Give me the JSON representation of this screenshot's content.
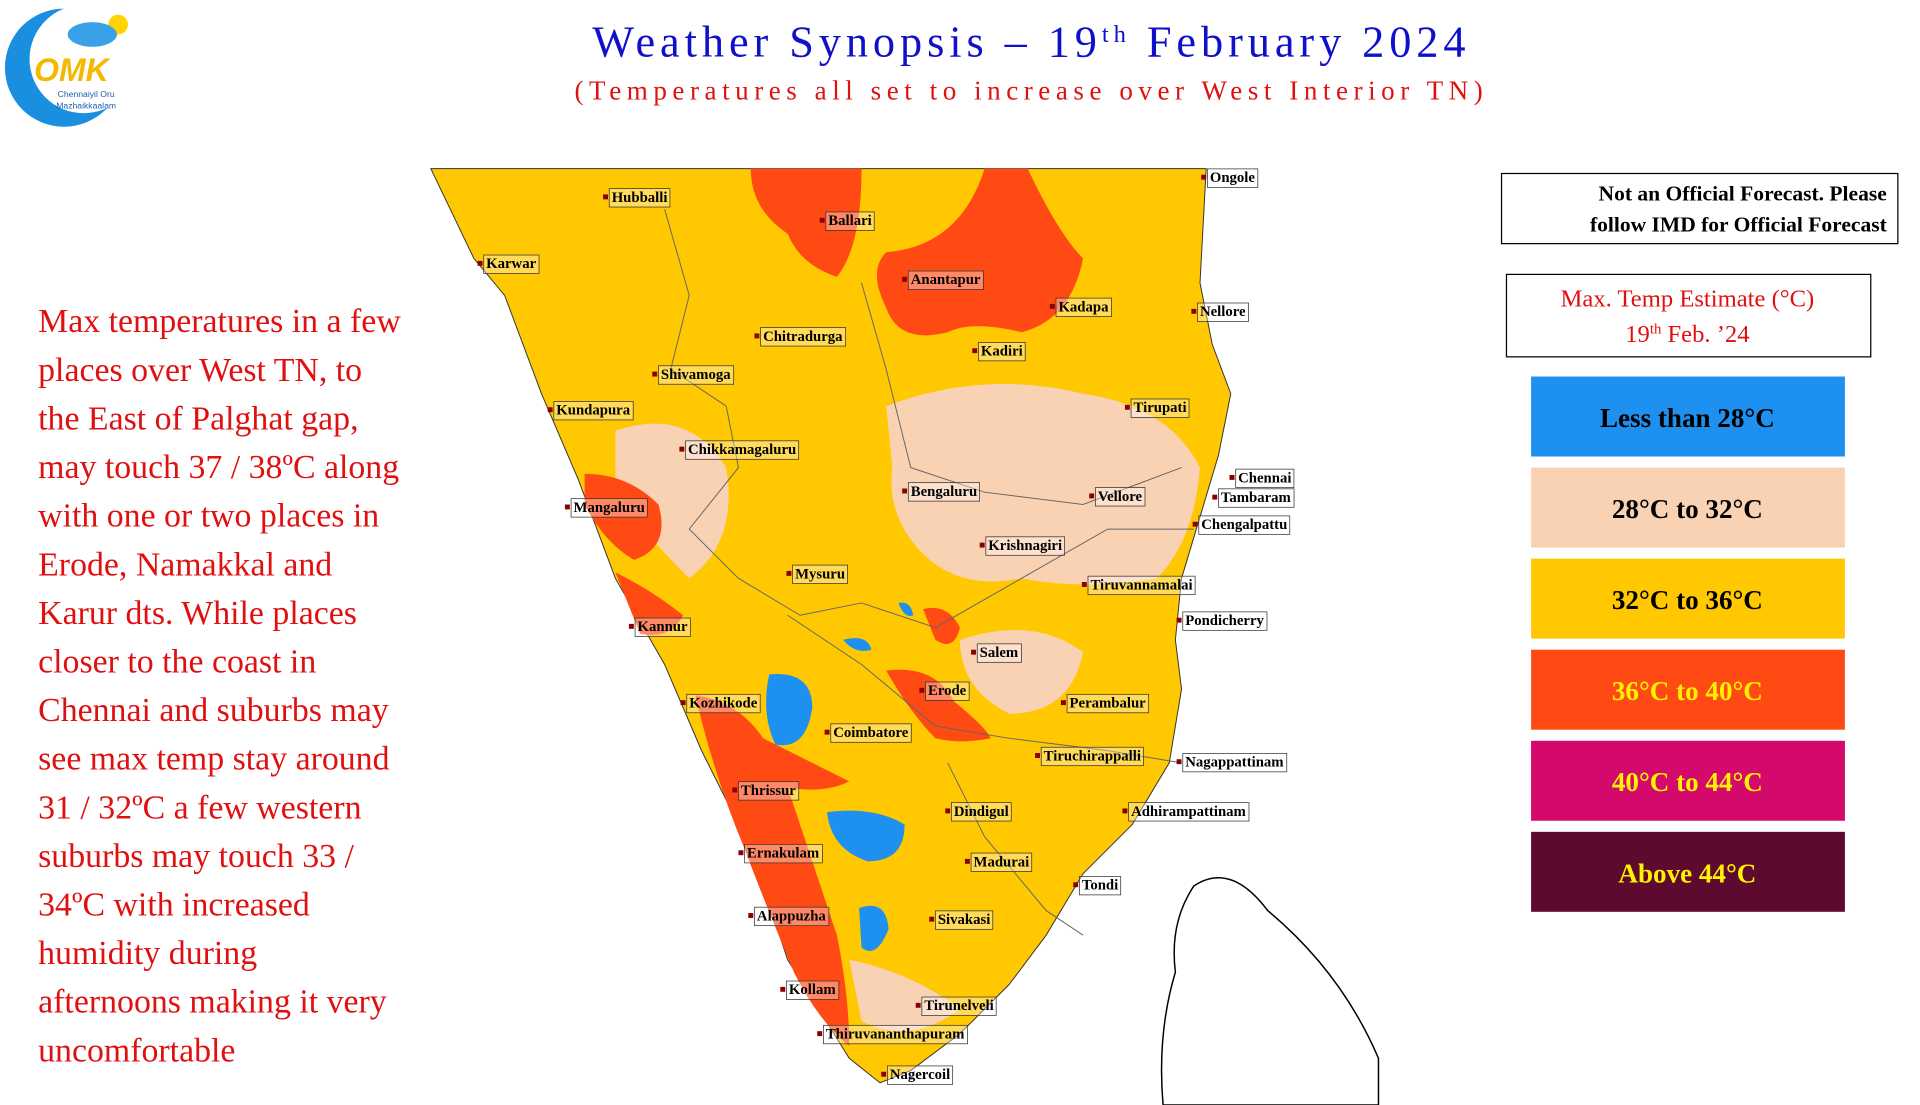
{
  "header": {
    "title": {
      "prefix": "Weather Synopsis – 19",
      "sup": "th",
      "suffix": " February 2024"
    },
    "subtitle": "(Temperatures all set to increase over West Interior TN)"
  },
  "logo": {
    "mark": "OMK",
    "line1": "Chennaiyil Oru",
    "line2": "Mazhaikkaalam"
  },
  "summary": {
    "lines": [
      "Max temperatures in a few",
      "places over West TN, to",
      "the East of Palghat gap,",
      "may touch 37 / 38ºC along",
      "with one or two places in",
      "Erode, Namakkal and",
      "Karur dts. While places",
      "closer to the coast in",
      "Chennai and suburbs may",
      "see max temp stay around",
      "31 / 32ºC a few western",
      "suburbs may touch 33 / ",
      "34ºC with increased",
      "humidity during",
      "afternoons making it very",
      "uncomfortable"
    ]
  },
  "disclaimer": {
    "line1": "Not an Official Forecast. Please",
    "line2": "follow IMD for Official Forecast"
  },
  "legend": {
    "title": "Max. Temp Estimate (°C)",
    "date": {
      "prefix": "19",
      "sup": "th",
      "suffix": " Feb. ’24"
    },
    "items": [
      {
        "label": "Less than 28°C",
        "color": "#1E90F0",
        "text_color": "#000000"
      },
      {
        "label": "28°C to 32°C",
        "color": "#F9D2B4",
        "text_color": "#000000"
      },
      {
        "label": "32°C to 36°C",
        "color": "#FFC800",
        "text_color": "#000000"
      },
      {
        "label": "36°C to 40°C",
        "color": "#FF4A14",
        "text_color": "#FFF200"
      },
      {
        "label": "40°C to 44°C",
        "color": "#D4096C",
        "text_color": "#FFF200"
      },
      {
        "label": "Above 44°C",
        "color": "#5E0A2E",
        "text_color": "#FFF200"
      }
    ]
  },
  "map": {
    "cities": [
      "Hubballi",
      "Ballari",
      "Ongole",
      "Karwar",
      "Anantapur",
      "Kadapa",
      "Nellore",
      "Chitradurga",
      "Kadiri",
      "Shivamoga",
      "Tirupati",
      "Kundapura",
      "Chikkamagaluru",
      "Chennai",
      "Bengaluru",
      "Vellore",
      "Tambaram",
      "Mangaluru",
      "Chengalpattu",
      "Krishnagiri",
      "Mysuru",
      "Tiruvannamalai",
      "Pondicherry",
      "Kannur",
      "Salem",
      "Erode",
      "Kozhikode",
      "Perambalur",
      "Coimbatore",
      "Tiruchirappalli",
      "Nagappattinam",
      "Thrissur",
      "Dindigul",
      "Adhirampattinam",
      "Ernakulam",
      "Madurai",
      "Tondi",
      "Alappuzha",
      "Sivakasi",
      "Kollam",
      "Tirunelveli",
      "Thiruvananthapuram",
      "Nagercoil"
    ]
  }
}
